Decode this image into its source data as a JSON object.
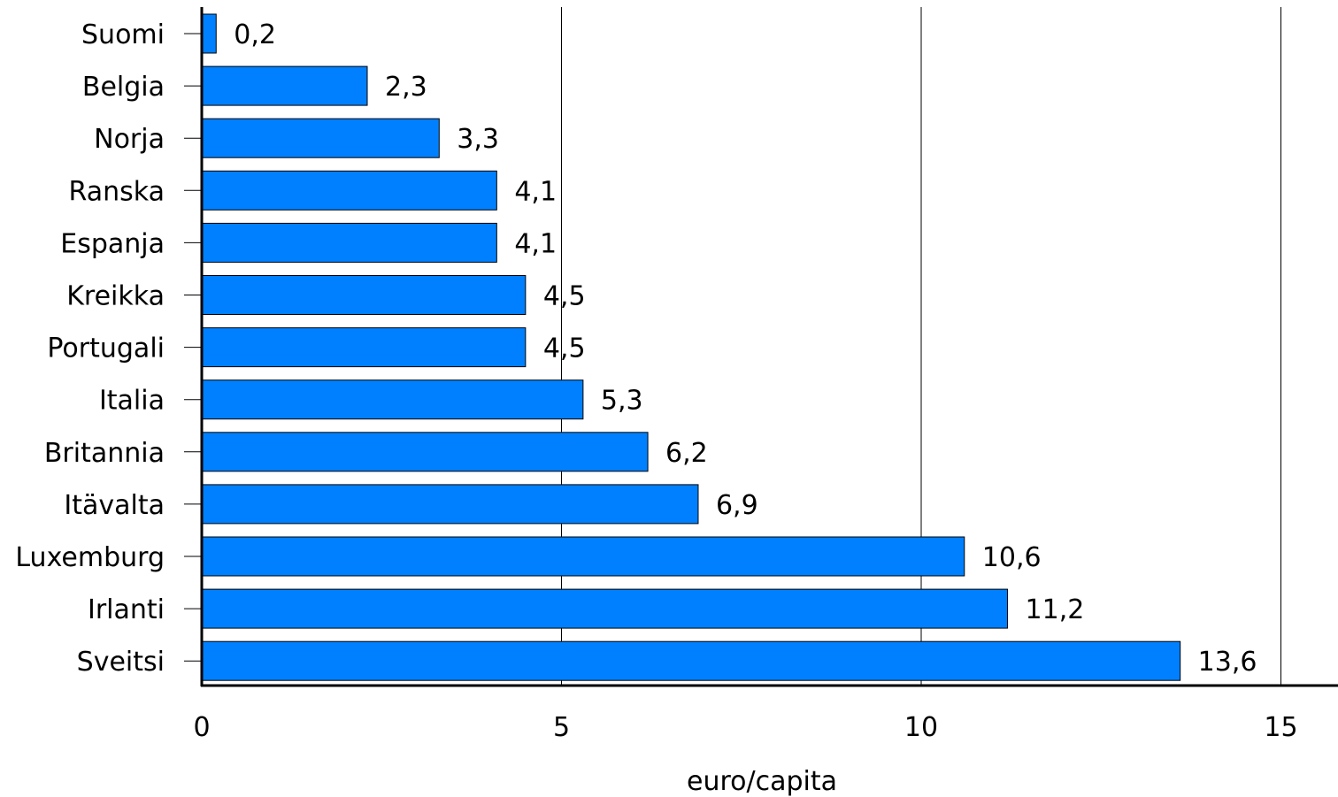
{
  "chart_data": {
    "type": "bar",
    "orientation": "horizontal",
    "categories": [
      "Suomi",
      "Belgia",
      "Norja",
      "Ranska",
      "Espanja",
      "Kreikka",
      "Portugali",
      "Italia",
      "Britannia",
      "Itävalta",
      "Luxemburg",
      "Irlanti",
      "Sveitsi"
    ],
    "values": [
      0.2,
      2.3,
      3.3,
      4.1,
      4.1,
      4.5,
      4.5,
      5.3,
      6.2,
      6.9,
      10.6,
      11.2,
      13.6
    ],
    "value_labels": [
      "0,2",
      "2,3",
      "3,3",
      "4,1",
      "4,1",
      "4,5",
      "4,5",
      "5,3",
      "6,2",
      "6,9",
      "10,6",
      "11,2",
      "13,6"
    ],
    "title": "",
    "xlabel": "euro/capita",
    "ylabel": "",
    "xlim": [
      0,
      15
    ],
    "x_ticks": [
      0,
      5,
      10,
      15
    ],
    "x_tick_labels": [
      "0",
      "5",
      "10",
      "15"
    ],
    "grid": "vertical",
    "legend": "none",
    "bar_color": "#0080ff"
  }
}
